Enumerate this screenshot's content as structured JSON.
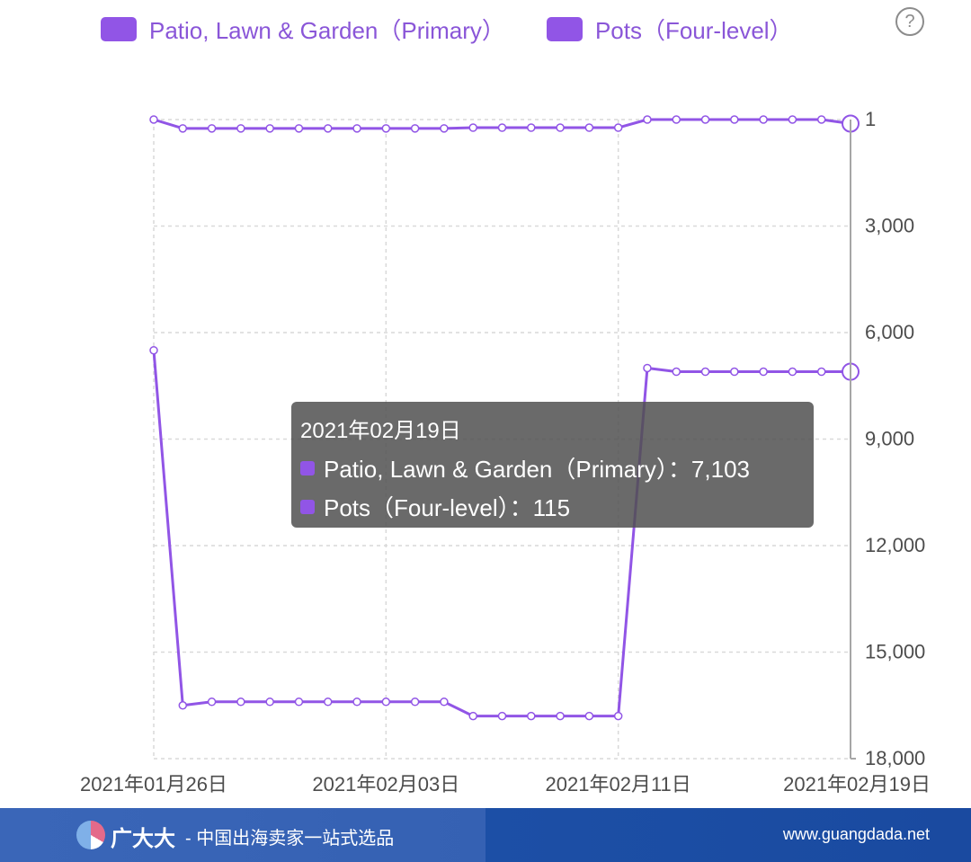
{
  "legend": {
    "items": [
      {
        "label": "Patio, Lawn & Garden（Primary）",
        "color": "#9155e6"
      },
      {
        "label": "Pots（Four-level）",
        "color": "#9155e6"
      }
    ]
  },
  "help_icon": "?",
  "chart_data": {
    "type": "line",
    "x": [
      "2021年01月26日",
      "2021年01月27日",
      "2021年01月28日",
      "2021年01月29日",
      "2021年01月30日",
      "2021年01月31日",
      "2021年02月01日",
      "2021年02月02日",
      "2021年02月03日",
      "2021年02月04日",
      "2021年02月05日",
      "2021年02月06日",
      "2021年02月07日",
      "2021年02月08日",
      "2021年02月09日",
      "2021年02月10日",
      "2021年02月11日",
      "2021年02月12日",
      "2021年02月13日",
      "2021年02月14日",
      "2021年02月15日",
      "2021年02月16日",
      "2021年02月17日",
      "2021年02月18日",
      "2021年02月19日"
    ],
    "xticks": [
      "2021年01月26日",
      "2021年02月03日",
      "2021年02月11日",
      "2021年02月19日"
    ],
    "yticks": [
      "1",
      "3,000",
      "6,000",
      "9,000",
      "12,000",
      "15,000",
      "18,000"
    ],
    "ylim": [
      1,
      18000
    ],
    "y_inverted": true,
    "grid": true,
    "series": [
      {
        "name": "Patio, Lawn & Garden（Primary）",
        "color": "#9155e6",
        "values": [
          6500,
          16500,
          16400,
          16400,
          16400,
          16400,
          16400,
          16400,
          16400,
          16400,
          16400,
          16800,
          16800,
          16800,
          16800,
          16800,
          16800,
          7000,
          7103,
          7103,
          7103,
          7103,
          7103,
          7103,
          7103
        ]
      },
      {
        "name": "Pots（Four-level）",
        "color": "#9155e6",
        "values": [
          1,
          250,
          250,
          250,
          250,
          250,
          250,
          250,
          250,
          250,
          250,
          230,
          230,
          230,
          230,
          230,
          230,
          1,
          1,
          1,
          1,
          1,
          1,
          1,
          115
        ]
      }
    ]
  },
  "tooltip": {
    "date": "2021年02月19日",
    "rows": [
      {
        "text": "Patio, Lawn & Garden（Primary）：7,103",
        "color": "#9155e6"
      },
      {
        "text": "Pots（Four-level）：115",
        "color": "#9155e6"
      }
    ]
  },
  "footer": {
    "brand": "广大大",
    "slogan": "- 中国出海卖家一站式选品",
    "url": "www.guangdada.net"
  }
}
